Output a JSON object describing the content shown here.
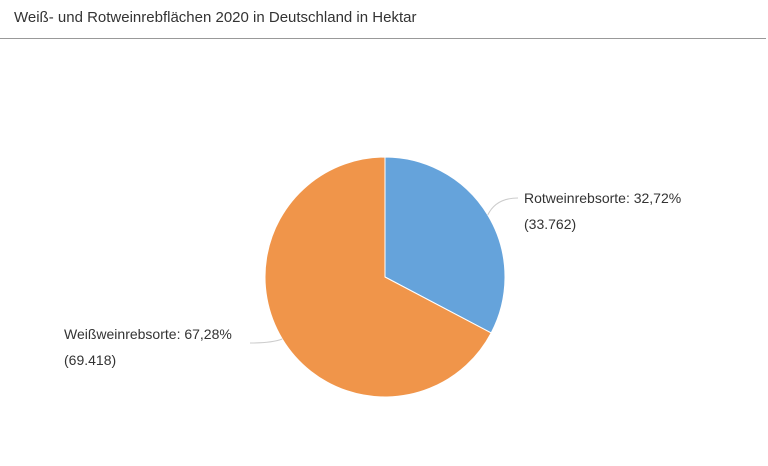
{
  "chart_data": {
    "type": "pie",
    "title": "Weiß- und Rotweinrebflächen 2020 in Deutschland in Hektar",
    "slices": [
      {
        "name": "Rotweinrebsorte",
        "percent_text": "32,72%",
        "value_text": "(33.762)",
        "value": 33762,
        "percent": 32.72,
        "color": "#65a3db"
      },
      {
        "name": "Weißweinrebsorte",
        "percent_text": "67,28%",
        "value_text": "(69.418)",
        "value": 69418,
        "percent": 67.28,
        "color": "#f0954a"
      }
    ],
    "label_line_color": "#cccccc"
  }
}
